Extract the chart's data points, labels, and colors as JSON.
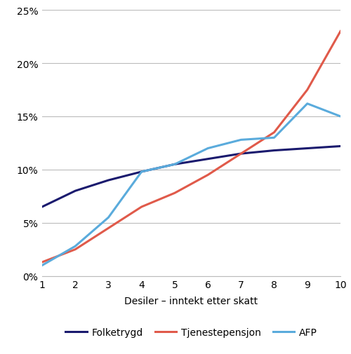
{
  "x": [
    1,
    2,
    3,
    4,
    5,
    6,
    7,
    8,
    9,
    10
  ],
  "folketrygd": [
    6.5,
    8.0,
    9.0,
    9.8,
    10.5,
    11.0,
    11.5,
    11.8,
    12.0,
    12.2
  ],
  "tjenestepensjon": [
    1.3,
    2.5,
    4.5,
    6.5,
    7.8,
    9.5,
    11.5,
    13.5,
    17.5,
    23.0
  ],
  "afp": [
    1.0,
    2.8,
    5.5,
    9.8,
    10.5,
    12.0,
    12.8,
    13.0,
    16.2,
    15.0
  ],
  "folketrygd_color": "#1a1a6e",
  "tjenestepensjon_color": "#e05a4a",
  "afp_color": "#5aabdc",
  "xlabel": "Desiler – inntekt etter skatt",
  "ylim": [
    0,
    25
  ],
  "yticks": [
    0,
    5,
    10,
    15,
    20,
    25
  ],
  "ytick_labels": [
    "0%",
    "5%",
    "10%",
    "15%",
    "20%",
    "25%"
  ],
  "legend_labels": [
    "Folketrygd",
    "Tjenestepensjon",
    "AFP"
  ],
  "line_width": 2.2,
  "grid_color": "#bbbbbb",
  "background_color": "#ffffff"
}
